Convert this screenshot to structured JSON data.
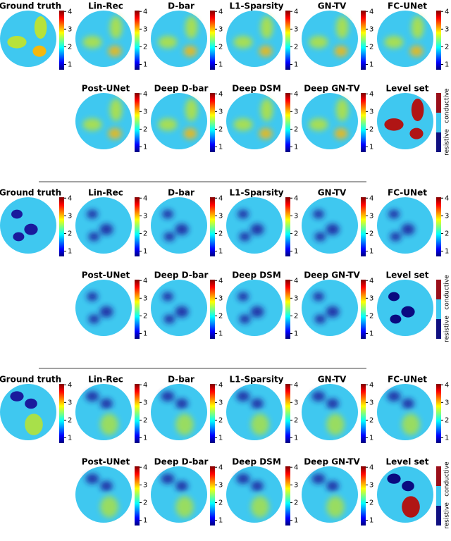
{
  "colorbar": {
    "ticks": [
      1,
      2,
      3,
      4
    ],
    "limits": [
      0.7,
      4.05
    ]
  },
  "level_set_colorbar": {
    "labels": [
      "conductive",
      "resistive"
    ]
  },
  "groups": [
    {
      "rows": [
        [
          "Ground truth",
          "Lin-Rec",
          "D-bar",
          "L1-Sparsity",
          "GN-TV",
          "FC-UNet"
        ],
        [
          "Post-UNet",
          "Deep D-bar",
          "Deep DSM",
          "Deep GN-TV",
          "Level set"
        ]
      ]
    },
    {
      "rows": [
        [
          "Ground truth",
          "Lin-Rec",
          "D-bar",
          "L1-Sparsity",
          "GN-TV",
          "FC-UNet"
        ],
        [
          "Post-UNet",
          "Deep D-bar",
          "Deep DSM",
          "Deep GN-TV",
          "Level set"
        ]
      ]
    },
    {
      "rows": [
        [
          "Ground truth",
          "Lin-Rec",
          "D-bar",
          "L1-Sparsity",
          "GN-TV",
          "FC-UNet"
        ],
        [
          "Post-UNet",
          "Deep D-bar",
          "Deep DSM",
          "Deep GN-TV",
          "Level set"
        ]
      ]
    }
  ]
}
